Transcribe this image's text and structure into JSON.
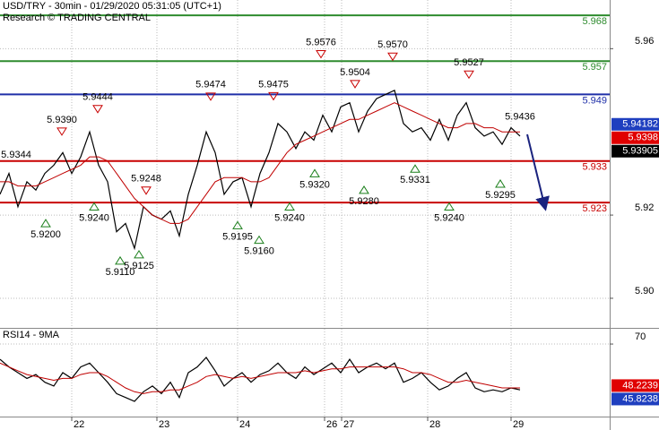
{
  "chart_data": [
    {
      "type": "line",
      "title": "USD/TRY - 30min - 01/29/2020 05:31:05 (UTC+1)",
      "subtitle": "Research © TRADING CENTRAL",
      "x": [
        0,
        1,
        2,
        3,
        4,
        5,
        6,
        7,
        8,
        9,
        10,
        11,
        12,
        13,
        14,
        15,
        16,
        17,
        18,
        19,
        20,
        21,
        22,
        23,
        24,
        25,
        26,
        27,
        28,
        29,
        30,
        31,
        32,
        33,
        34,
        35,
        36,
        37,
        38,
        39,
        40,
        41,
        42,
        43,
        44,
        45,
        46,
        47,
        48,
        49,
        50,
        51,
        52,
        53,
        54,
        55,
        56,
        57,
        58
      ],
      "xlim": [
        0,
        68
      ],
      "xticks": [
        {
          "value": 8,
          "label": "22"
        },
        {
          "value": 17.5,
          "label": "23"
        },
        {
          "value": 26.5,
          "label": "24"
        },
        {
          "value": 36.2,
          "label": "26"
        },
        {
          "value": 38.1,
          "label": "27"
        },
        {
          "value": 47.7,
          "label": "28"
        },
        {
          "value": 57,
          "label": "29"
        }
      ],
      "ylim": [
        5.8931,
        5.9717
      ],
      "yticks": [
        {
          "value": 5.9,
          "label": "5.90"
        },
        5.92,
        5.96
      ],
      "grid": true,
      "series": [
        {
          "color": "#000000",
          "values": [
            5.925,
            5.93,
            5.922,
            5.928,
            5.926,
            5.93,
            5.932,
            5.935,
            5.93,
            5.934,
            5.94,
            5.932,
            5.928,
            5.916,
            5.918,
            5.912,
            5.922,
            5.92,
            5.919,
            5.921,
            5.915,
            5.925,
            5.932,
            5.94,
            5.935,
            5.925,
            5.928,
            5.929,
            5.922,
            5.93,
            5.935,
            5.942,
            5.94,
            5.936,
            5.94,
            5.938,
            5.944,
            5.94,
            5.946,
            5.947,
            5.94,
            5.945,
            5.948,
            5.949,
            5.95,
            5.942,
            5.94,
            5.941,
            5.938,
            5.943,
            5.938,
            5.944,
            5.947,
            5.941,
            5.939,
            5.94,
            5.937,
            5.941,
            5.939
          ]
        },
        {
          "color": "#c00000",
          "values": [
            5.928,
            5.928,
            5.927,
            5.927,
            5.927,
            5.928,
            5.929,
            5.93,
            5.931,
            5.932,
            5.934,
            5.934,
            5.933,
            5.93,
            5.927,
            5.924,
            5.922,
            5.92,
            5.919,
            5.918,
            5.918,
            5.919,
            5.922,
            5.925,
            5.928,
            5.929,
            5.929,
            5.929,
            5.928,
            5.928,
            5.929,
            5.932,
            5.935,
            5.937,
            5.938,
            5.939,
            5.94,
            5.941,
            5.942,
            5.943,
            5.943,
            5.944,
            5.945,
            5.946,
            5.947,
            5.946,
            5.945,
            5.944,
            5.943,
            5.942,
            5.941,
            5.941,
            5.942,
            5.942,
            5.941,
            5.941,
            5.94,
            5.94,
            5.94
          ]
        }
      ],
      "levels": [
        {
          "value": 5.968,
          "color": "#2e8b2e"
        },
        {
          "value": 5.957,
          "color": "#2e8b2e"
        },
        {
          "value": 5.949,
          "color": "#1f2fa8"
        },
        {
          "value": 5.933,
          "color": "#c80000"
        },
        {
          "value": 5.923,
          "color": "#c80000"
        }
      ],
      "annotations": [
        {
          "x": 1.8,
          "value": 5.9344,
          "label": "5.9344",
          "direction": "none"
        },
        {
          "x": 6.9,
          "value": 5.939,
          "label": "5.9390",
          "direction": "down"
        },
        {
          "x": 10.9,
          "value": 5.9444,
          "label": "5.9444",
          "direction": "down"
        },
        {
          "x": 16.3,
          "value": 5.9248,
          "label": "5.9248",
          "direction": "down"
        },
        {
          "x": 23.5,
          "value": 5.9474,
          "label": "5.9474",
          "direction": "down"
        },
        {
          "x": 30.5,
          "value": 5.9475,
          "label": "5.9475",
          "direction": "down"
        },
        {
          "x": 35.8,
          "value": 5.9576,
          "label": "5.9576",
          "direction": "down"
        },
        {
          "x": 39.6,
          "value": 5.9504,
          "label": "5.9504",
          "direction": "down"
        },
        {
          "x": 43.8,
          "value": 5.957,
          "label": "5.9570",
          "direction": "down"
        },
        {
          "x": 52.3,
          "value": 5.9527,
          "label": "5.9527",
          "direction": "down"
        },
        {
          "x": 58,
          "value": 5.9436,
          "label": "5.9436",
          "direction": "none"
        },
        {
          "x": 5.1,
          "value": 5.92,
          "label": "5.9200",
          "direction": "up"
        },
        {
          "x": 10.5,
          "value": 5.924,
          "label": "5.9240",
          "direction": "up"
        },
        {
          "x": 13.4,
          "value": 5.911,
          "label": "5.9110",
          "direction": "up"
        },
        {
          "x": 15.5,
          "value": 5.9125,
          "label": "5.9125",
          "direction": "up"
        },
        {
          "x": 26.5,
          "value": 5.9195,
          "label": "5.9195",
          "direction": "up"
        },
        {
          "x": 28.9,
          "value": 5.916,
          "label": "5.9160",
          "direction": "up"
        },
        {
          "x": 32.3,
          "value": 5.924,
          "label": "5.9240",
          "direction": "up"
        },
        {
          "x": 35.1,
          "value": 5.932,
          "label": "5.9320",
          "direction": "up"
        },
        {
          "x": 40.6,
          "value": 5.928,
          "label": "5.9280",
          "direction": "up"
        },
        {
          "x": 46.3,
          "value": 5.9331,
          "label": "5.9331",
          "direction": "up"
        },
        {
          "x": 50.1,
          "value": 5.924,
          "label": "5.9240",
          "direction": "up"
        },
        {
          "x": 55.8,
          "value": 5.9295,
          "label": "5.9295",
          "direction": "up"
        }
      ],
      "price_tags": [
        {
          "value": 5.94182,
          "color": "#1f3fbf"
        },
        {
          "value": 5.9398,
          "color": "#e00000"
        },
        {
          "value": 5.93905,
          "color": "#000000"
        }
      ]
    },
    {
      "type": "line",
      "title": "RSI14 - 9MA",
      "x": [
        0,
        1,
        2,
        3,
        4,
        5,
        6,
        7,
        8,
        9,
        10,
        11,
        12,
        13,
        14,
        15,
        16,
        17,
        18,
        19,
        20,
        21,
        22,
        23,
        24,
        25,
        26,
        27,
        28,
        29,
        30,
        31,
        32,
        33,
        34,
        35,
        36,
        37,
        38,
        39,
        40,
        41,
        42,
        43,
        44,
        45,
        46,
        47,
        48,
        49,
        50,
        51,
        52,
        53,
        54,
        55,
        56,
        57,
        58
      ],
      "xlim": [
        0,
        68
      ],
      "ylim": [
        32,
        78
      ],
      "yticks": [
        70
      ],
      "series": [
        {
          "color": "#000000",
          "values": [
            62,
            58,
            55,
            52,
            54,
            50,
            48,
            55,
            52,
            58,
            60,
            55,
            50,
            44,
            42,
            40,
            45,
            48,
            44,
            50,
            42,
            55,
            58,
            63,
            56,
            48,
            52,
            55,
            50,
            54,
            56,
            60,
            55,
            52,
            58,
            54,
            57,
            60,
            55,
            62,
            55,
            58,
            60,
            57,
            60,
            50,
            52,
            55,
            50,
            46,
            48,
            52,
            55,
            47,
            45,
            46,
            45,
            47,
            46
          ]
        },
        {
          "color": "#c00000",
          "values": [
            60,
            58,
            56,
            54,
            53,
            52,
            51,
            52,
            52,
            54,
            55,
            55,
            53,
            50,
            47,
            45,
            44,
            45,
            45,
            46,
            46,
            48,
            50,
            53,
            54,
            53,
            52,
            53,
            52,
            53,
            54,
            55,
            55,
            55,
            56,
            55,
            56,
            57,
            57,
            58,
            58,
            58,
            58,
            58,
            58,
            57,
            55,
            55,
            54,
            52,
            50,
            50,
            51,
            50,
            49,
            48,
            47,
            47,
            47
          ]
        }
      ],
      "price_tags": [
        {
          "value": 48.2239,
          "color": "#e00000"
        },
        {
          "value": 45.8238,
          "color": "#1f3fbf"
        }
      ]
    }
  ]
}
